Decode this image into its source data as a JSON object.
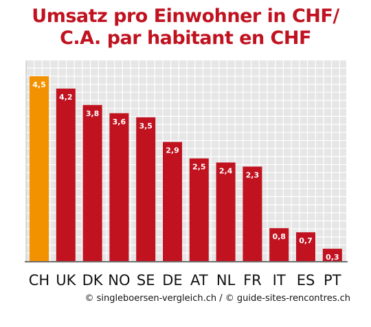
{
  "header": {
    "title_line1": "Umsatz pro Einwohner in CHF/",
    "title_line2": "C.A. par habitant en CHF"
  },
  "credit": "© singleboersen-vergleich.ch / © guide-sites-rencontres.ch",
  "colors": {
    "title": "#c0121f",
    "bar": "#c0121f",
    "bar_highlight": "#f39200",
    "grid_bg": "#e6e6e6",
    "grid_line": "#ffffff"
  },
  "chart_data": {
    "type": "bar",
    "title": "Umsatz pro Einwohner in CHF/ C.A. par habitant en CHF",
    "categories": [
      "CH",
      "UK",
      "DK",
      "NO",
      "SE",
      "DE",
      "AT",
      "NL",
      "FR",
      "IT",
      "ES",
      "PT"
    ],
    "values": [
      4.5,
      4.2,
      3.8,
      3.6,
      3.5,
      2.9,
      2.5,
      2.4,
      2.3,
      0.8,
      0.7,
      0.3
    ],
    "value_labels": [
      "4,5",
      "4,2",
      "3,8",
      "3,6",
      "3,5",
      "2,9",
      "2,5",
      "2,4",
      "2,3",
      "0,8",
      "0,7",
      "0,3"
    ],
    "highlight_category": "CH",
    "xlabel": "",
    "ylabel": "",
    "ylim": [
      0,
      4.8
    ],
    "grid": true,
    "legend": "none"
  }
}
